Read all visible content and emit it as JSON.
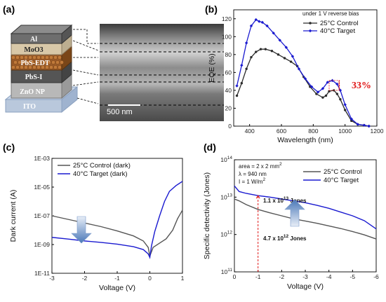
{
  "colors": {
    "control": "#2b2b2b",
    "target": "#1a1ad0",
    "arrow": "#4a78b8",
    "red": "#e01818"
  },
  "panel_a": {
    "label": "(a)",
    "layers": [
      "Al",
      "MoO3",
      "PbS-EDT",
      "PbS-I",
      "ZnO NP",
      "ITO"
    ],
    "scale_bar": "500 nm"
  },
  "chart_data": [
    {
      "id": "b",
      "panel": "(b)",
      "type": "line",
      "xlabel": "Wavelength (nm)",
      "ylabel": "EQE (%)",
      "xlim": [
        300,
        1200
      ],
      "ylim": [
        0,
        130
      ],
      "xticks": [
        400,
        600,
        800,
        1000,
        1200
      ],
      "yticks": [
        0,
        20,
        40,
        60,
        80,
        100,
        120
      ],
      "annotation_top": "under 1 V reverse bias",
      "callout": "33%",
      "legend_position": "top-right",
      "series": [
        {
          "name": "25°C Control",
          "x": [
            320,
            350,
            380,
            410,
            440,
            470,
            500,
            540,
            580,
            620,
            660,
            700,
            740,
            780,
            820,
            860,
            880,
            900,
            930,
            950,
            970,
            1000,
            1040,
            1080,
            1120,
            1150
          ],
          "y": [
            34,
            48,
            64,
            77,
            83,
            86,
            86,
            84,
            80,
            76,
            72,
            67,
            55,
            44,
            36,
            32,
            34,
            39,
            40,
            36,
            30,
            18,
            6,
            2,
            1,
            0
          ]
        },
        {
          "name": "40°C Target",
          "x": [
            320,
            350,
            380,
            410,
            440,
            460,
            480,
            510,
            550,
            590,
            630,
            670,
            710,
            750,
            790,
            830,
            860,
            890,
            920,
            950,
            970,
            1000,
            1040,
            1080,
            1120,
            1150
          ],
          "y": [
            45,
            68,
            93,
            112,
            119,
            117,
            116,
            112,
            104,
            96,
            88,
            78,
            64,
            53,
            44,
            38,
            42,
            49,
            51,
            47,
            40,
            24,
            8,
            2,
            1,
            0
          ]
        }
      ]
    },
    {
      "id": "c",
      "panel": "(c)",
      "type": "line",
      "xlabel": "Voltage (V)",
      "ylabel": "Dark current (A)",
      "xlim": [
        -3,
        1
      ],
      "ylim_log10": [
        -11,
        -3
      ],
      "xticks": [
        -3,
        -2,
        -1,
        0,
        1
      ],
      "yticks_labels": [
        "1E-11",
        "1E-09",
        "1E-07",
        "1E-05",
        "1E-03"
      ],
      "legend_position": "top-left",
      "series": [
        {
          "name": "25°C Control (dark)",
          "x": [
            -3,
            -2.5,
            -2,
            -1.5,
            -1,
            -0.5,
            -0.2,
            -0.05,
            0,
            0.1,
            0.3,
            0.5,
            0.7,
            0.85,
            1
          ],
          "y_log10": [
            -7.0,
            -7.25,
            -7.5,
            -7.75,
            -8.05,
            -8.4,
            -8.75,
            -9.2,
            -9.8,
            -9.2,
            -8.9,
            -8.6,
            -8.0,
            -7.2,
            -6.6
          ]
        },
        {
          "name": "40°C Target (dark)",
          "x": [
            -3,
            -2.5,
            -2,
            -1.5,
            -1,
            -0.5,
            -0.2,
            -0.05,
            0,
            0.05,
            0.15,
            0.3,
            0.45,
            0.6,
            0.8,
            1
          ],
          "y_log10": [
            -8.5,
            -8.62,
            -8.75,
            -8.85,
            -8.97,
            -9.15,
            -9.35,
            -9.65,
            -9.9,
            -9.1,
            -8.1,
            -7.0,
            -6.0,
            -5.3,
            -4.9,
            -4.6
          ]
        }
      ]
    },
    {
      "id": "d",
      "panel": "(d)",
      "type": "line",
      "xlabel": "Voltage (V)",
      "ylabel": "Specific detectivity (Jones)",
      "xlim": [
        0,
        -6
      ],
      "ylim_log10": [
        11,
        14
      ],
      "xticks": [
        0,
        -1,
        -2,
        -3,
        -4,
        -5,
        -6
      ],
      "yticks_exp": [
        11,
        12,
        13,
        14
      ],
      "legend_position": "top-right",
      "conditions": [
        "area = 2 x 2 mm",
        "λ = 940 nm",
        "I = 1 W/m"
      ],
      "value_target": "1.1 x 10",
      "value_target_exp": "13",
      "value_target_unit": " Jones",
      "value_control": "4.7 x 10",
      "value_control_exp": "12",
      "value_control_unit": " Jones",
      "series": [
        {
          "name": "25°C Control",
          "x": [
            0,
            -0.2,
            -0.5,
            -1,
            -1.5,
            -2,
            -2.5,
            -3,
            -3.5,
            -4,
            -4.5,
            -5,
            -5.5,
            -6
          ],
          "y_log10": [
            12.95,
            12.9,
            12.8,
            12.67,
            12.58,
            12.5,
            12.42,
            12.36,
            12.3,
            12.23,
            12.16,
            12.08,
            11.99,
            11.88
          ]
        },
        {
          "name": "40°C Target",
          "x": [
            0,
            -0.2,
            -0.5,
            -1,
            -1.5,
            -2,
            -2.5,
            -3,
            -3.5,
            -4,
            -4.5,
            -5,
            -5.5,
            -6
          ],
          "y_log10": [
            13.3,
            13.15,
            13.1,
            13.04,
            13.0,
            12.95,
            12.9,
            12.85,
            12.78,
            12.7,
            12.6,
            12.5,
            12.37,
            12.15
          ]
        }
      ]
    }
  ]
}
